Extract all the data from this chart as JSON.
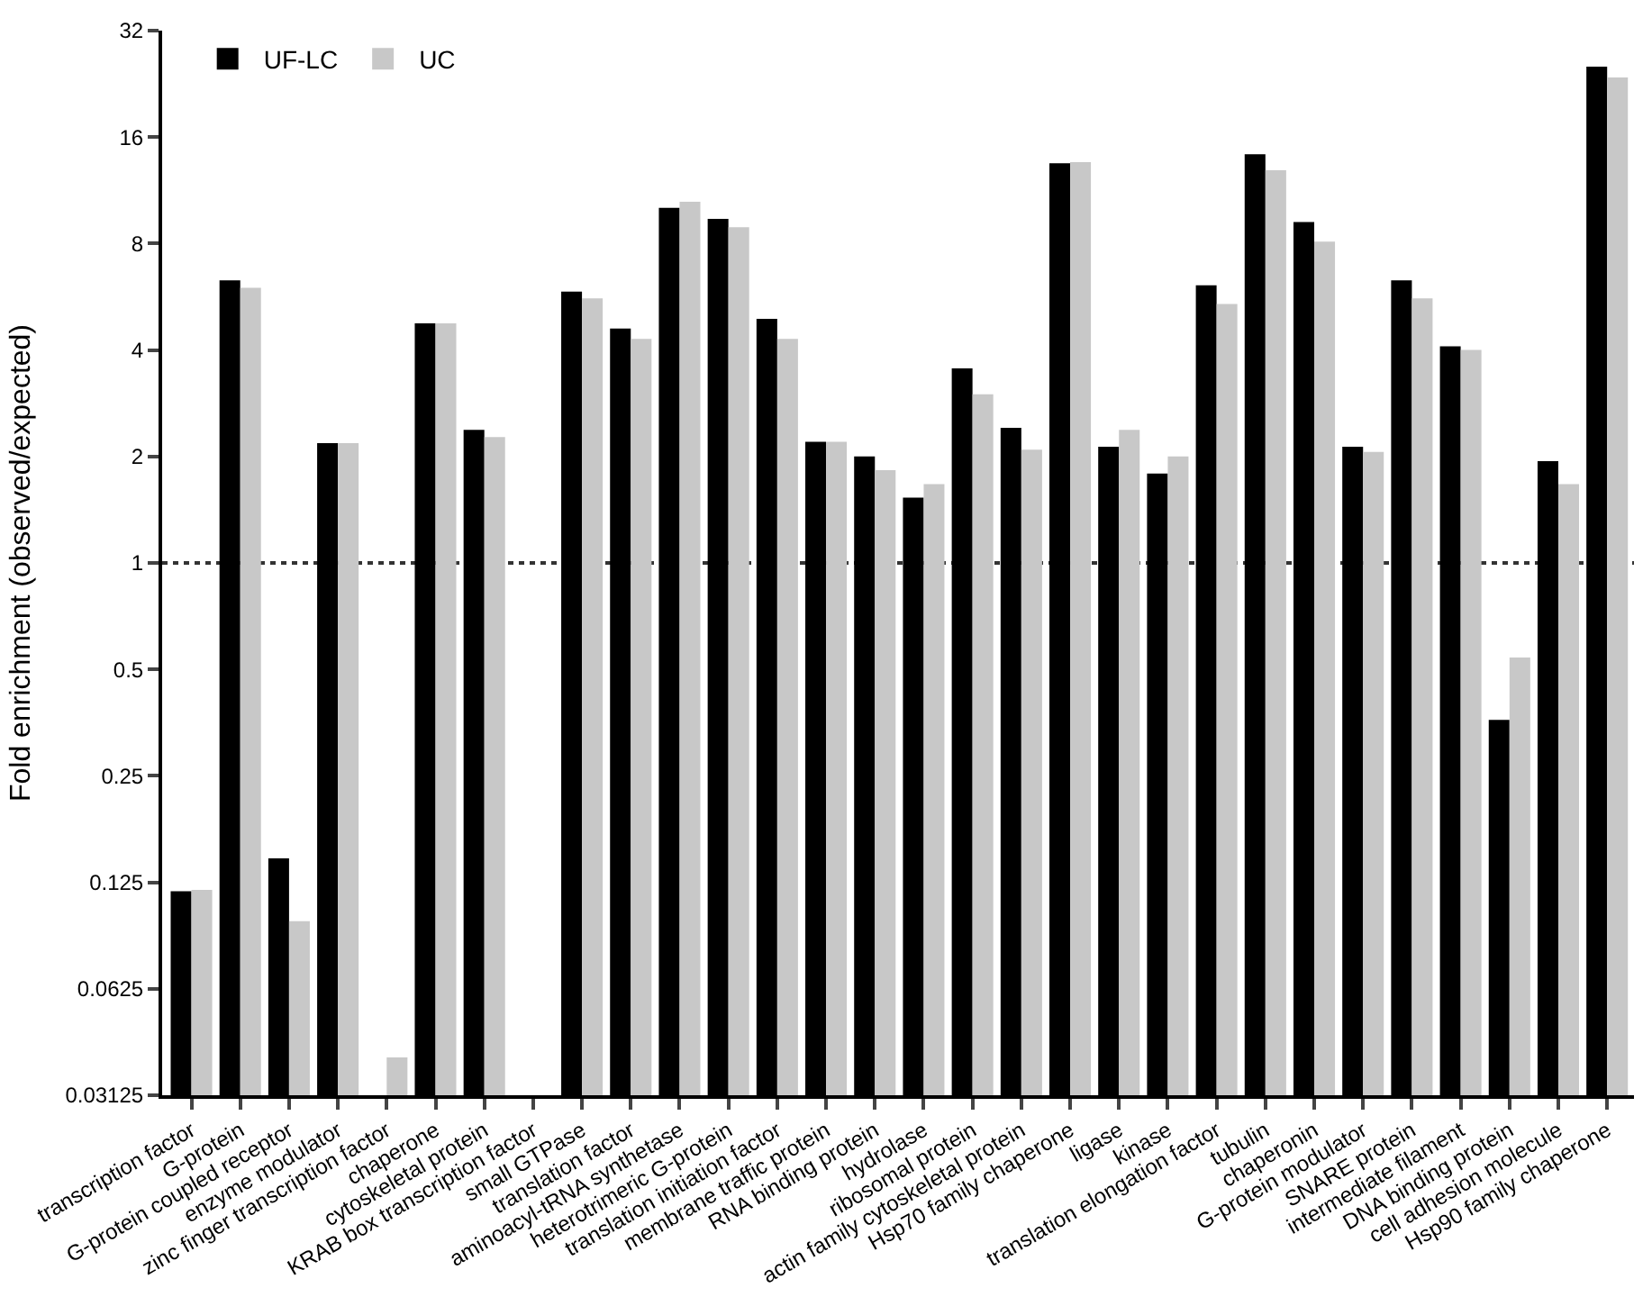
{
  "chart_data": {
    "type": "bar",
    "ylabel": "Fold enrichment (observed/expected)",
    "log": "y",
    "legend": "top left",
    "grid": false,
    "categories": [
      "transcription factor",
      "G-protein",
      "G-protein coupled receptor",
      "enzyme modulator",
      "zinc finger transcription factor",
      "chaperone",
      "cytoskeletal protein",
      "KRAB box transcription factor",
      "small GTPase",
      "translation factor",
      "aminoacyl-tRNA synthetase",
      "heterotrimeric G-protein",
      "translation initiation factor",
      "membrane traffic protein",
      "RNA binding protein",
      "hydrolase",
      "ribosomal protein",
      "actin family cytoskeletal protein",
      "Hsp70 family chaperone",
      "ligase",
      "kinase",
      "translation elongation factor",
      "tubulin",
      "chaperonin",
      "G-protein modulator",
      "SNARE protein",
      "intermediate filament",
      "DNA binding protein",
      "cell adhesion molecule",
      "Hsp90 family chaperone"
    ],
    "series": [
      {
        "name": "UF-LC",
        "color": "#000000",
        "values": [
          0.118,
          6.3,
          0.146,
          2.18,
          null,
          4.76,
          2.38,
          null,
          5.85,
          4.6,
          10.1,
          9.4,
          4.9,
          2.2,
          2.0,
          1.53,
          3.55,
          2.41,
          13.5,
          2.13,
          1.79,
          6.1,
          14.3,
          9.2,
          2.13,
          6.3,
          4.1,
          0.36,
          1.94,
          25.3
        ]
      },
      {
        "name": "UC",
        "color": "#c8c8c8",
        "values": [
          0.119,
          6.0,
          0.097,
          2.18,
          0.04,
          4.76,
          2.27,
          null,
          5.6,
          4.3,
          10.5,
          8.9,
          4.3,
          2.2,
          1.83,
          1.67,
          3.0,
          2.09,
          13.6,
          2.38,
          2.0,
          5.4,
          12.9,
          8.1,
          2.06,
          5.6,
          4.0,
          0.54,
          1.67,
          23.6
        ]
      }
    ],
    "ylim": [
      0.03125,
      32
    ],
    "yticks": [
      {
        "value": 0.03125,
        "label": "0.03125"
      },
      {
        "value": 0.0625,
        "label": "0.0625"
      },
      {
        "value": 0.125,
        "label": "0.125"
      },
      {
        "value": 0.25,
        "label": "0.25"
      },
      {
        "value": 0.5,
        "label": "0.5"
      },
      1,
      2,
      4,
      8,
      16,
      32
    ],
    "ref_lines": [
      {
        "axis": "y",
        "value": 1,
        "label": null,
        "color": "#333333",
        "line_style": "dotted"
      }
    ]
  }
}
